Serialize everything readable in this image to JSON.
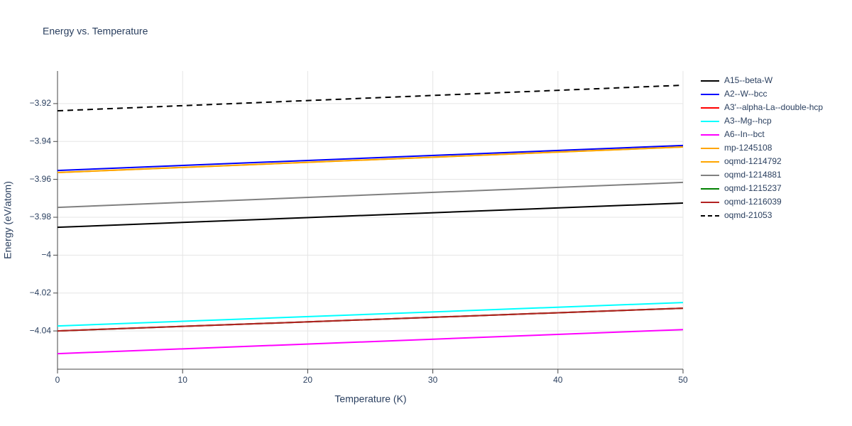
{
  "chart_data": {
    "type": "line",
    "title": "Energy vs. Temperature",
    "x_label": "Temperature (K)",
    "y_label": "Energy (eV/atom)",
    "x": [
      0,
      50
    ],
    "xlim": [
      0,
      50
    ],
    "xticks": [
      0,
      10,
      20,
      30,
      40,
      50
    ],
    "ylim": [
      -4.0602,
      -3.9028
    ],
    "yticks": [
      {
        "value": -4.04,
        "label": "−4.04"
      },
      {
        "value": -4.02,
        "label": "−4.02"
      },
      {
        "value": -4,
        "label": "−4"
      },
      {
        "value": -3.98,
        "label": "−3.98"
      },
      {
        "value": -3.96,
        "label": "−3.96"
      },
      {
        "value": -3.94,
        "label": "−3.94"
      },
      {
        "value": -3.92,
        "label": "−3.92"
      }
    ],
    "grid": true,
    "legend": "right",
    "series": [
      {
        "name": "A15--beta-W",
        "color": "#000000",
        "values": [
          -3.9853,
          -3.9725
        ]
      },
      {
        "name": "A2--W--bcc",
        "color": "#0000ff",
        "values": [
          -3.9553,
          -3.9421
        ]
      },
      {
        "name": "A3'--alpha-La--double-hcp",
        "color": "#ff0000",
        "values": [
          -4.04,
          -4.028
        ]
      },
      {
        "name": "A3--Mg--hcp",
        "color": "#00ffff",
        "values": [
          -4.0374,
          -4.025
        ]
      },
      {
        "name": "A6--In--bct",
        "color": "#ff00ff",
        "values": [
          -4.052,
          -4.0393
        ]
      },
      {
        "name": "mp-1245108",
        "color": "#ffa500",
        "values": [
          -3.9564,
          -3.9429
        ]
      },
      {
        "name": "oqmd-1214792",
        "color": "#ffa500",
        "values": [
          -3.9564,
          -3.9429
        ]
      },
      {
        "name": "oqmd-1214881",
        "color": "#808080",
        "values": [
          -3.9748,
          -3.9616
        ]
      },
      {
        "name": "oqmd-1215237",
        "color": "#008000",
        "values": [
          -4.04,
          -4.028
        ]
      },
      {
        "name": "oqmd-1216039",
        "color": "#b22222",
        "values": [
          -4.04,
          -4.028
        ]
      },
      {
        "name": "oqmd-21053",
        "color": "#000000",
        "dash": true,
        "values": [
          -3.9238,
          -3.9103
        ]
      }
    ]
  }
}
